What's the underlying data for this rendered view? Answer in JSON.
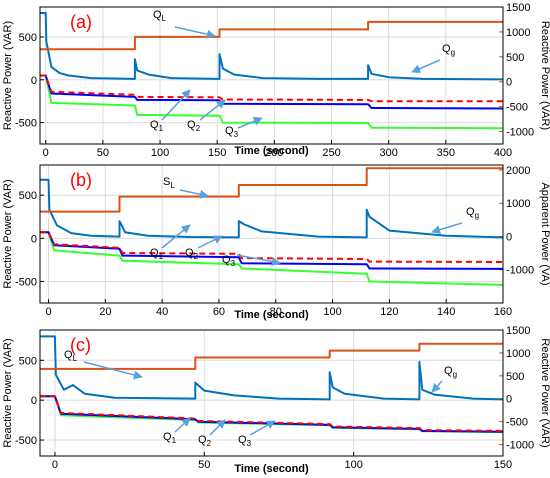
{
  "colors": {
    "load": "#d95319",
    "grid": "#0072bd",
    "q1": "#ff0000",
    "q2": "#0000ff",
    "q3": "#33ff33",
    "label": "#ff0000",
    "arrow": "#5aa0dc"
  },
  "chart_data": [
    {
      "type": "line",
      "panel_label": "(a)",
      "xlabel": "Time (second)",
      "ylabel_left": "Reactive Power (VAR)",
      "ylabel_right": "Reactive Power (VAR)",
      "xlim": [
        -5,
        400
      ],
      "ylim_left": [
        -750,
        850
      ],
      "ylim_right": [
        -1250,
        1500
      ],
      "xticks": [
        "0",
        "50",
        "100",
        "150",
        "200",
        "250",
        "300",
        "350",
        "400"
      ],
      "yticks_left": [
        "0",
        "500",
        "-500"
      ],
      "yticks_right": [
        "-1000",
        "-500",
        "0",
        "500",
        "1000",
        "1500"
      ],
      "grid": true,
      "series": [
        {
          "name": "QL",
          "axis": "right",
          "style": "solid",
          "x": [
            -5,
            78,
            78,
            152,
            152,
            282,
            282,
            400
          ],
          "y": [
            650,
            650,
            900,
            900,
            1050,
            1050,
            1200,
            1200
          ]
        },
        {
          "name": "Qg",
          "axis": "left",
          "style": "solid",
          "x": [
            -5,
            0,
            0.5,
            5,
            12,
            20,
            40,
            78,
            78,
            80,
            90,
            110,
            150,
            152,
            152,
            155,
            165,
            190,
            240,
            282,
            282,
            285,
            300,
            330,
            400
          ],
          "y": [
            780,
            780,
            450,
            150,
            80,
            50,
            20,
            10,
            240,
            110,
            60,
            20,
            10,
            10,
            300,
            130,
            60,
            20,
            10,
            10,
            170,
            70,
            30,
            10,
            5
          ]
        },
        {
          "name": "Q1",
          "axis": "left",
          "style": "dashed",
          "x": [
            -5,
            0,
            5,
            78,
            80,
            152,
            155,
            282,
            285,
            400
          ],
          "y": [
            50,
            50,
            -140,
            -175,
            -200,
            -205,
            -230,
            -235,
            -250,
            -250
          ]
        },
        {
          "name": "Q2",
          "axis": "left",
          "style": "solid",
          "x": [
            -5,
            0,
            5,
            78,
            80,
            152,
            155,
            282,
            285,
            400
          ],
          "y": [
            50,
            50,
            -160,
            -200,
            -235,
            -240,
            -280,
            -285,
            -330,
            -335
          ]
        },
        {
          "name": "Q3",
          "axis": "left",
          "style": "solid",
          "x": [
            -5,
            0,
            5,
            78,
            80,
            152,
            155,
            282,
            285,
            400
          ],
          "y": [
            50,
            50,
            -270,
            -300,
            -410,
            -420,
            -500,
            -505,
            -560,
            -565
          ]
        }
      ],
      "annotations": [
        "QL",
        "Qg",
        "Q1",
        "Q2",
        "Q3"
      ]
    },
    {
      "type": "line",
      "panel_label": "(b)",
      "xlabel": "Time (second)",
      "ylabel_left": "Reactive Power (VAR)",
      "ylabel_right": "Apparent Power (VA)",
      "xlim": [
        -3,
        160
      ],
      "ylim_left": [
        -750,
        850
      ],
      "ylim_right": [
        -2000,
        2150
      ],
      "xticks": [
        "0",
        "20",
        "40",
        "60",
        "80",
        "100",
        "120",
        "140",
        "160"
      ],
      "yticks_left": [
        "500",
        "0",
        "-500"
      ],
      "yticks_right": [
        "-1000",
        "0",
        "1000",
        "2000"
      ],
      "grid": true,
      "series": [
        {
          "name": "SL",
          "axis": "right",
          "style": "solid",
          "x": [
            -3,
            25,
            25,
            67,
            67,
            112,
            112,
            160
          ],
          "y": [
            750,
            750,
            1200,
            1200,
            1550,
            1550,
            2050,
            2050
          ]
        },
        {
          "name": "Qg",
          "axis": "left",
          "style": "solid",
          "x": [
            -3,
            0,
            0.3,
            3,
            8,
            15,
            25,
            25,
            27,
            35,
            50,
            67,
            67,
            69,
            75,
            95,
            112,
            112,
            113,
            120,
            140,
            160
          ],
          "y": [
            680,
            680,
            330,
            150,
            60,
            30,
            20,
            200,
            70,
            30,
            15,
            10,
            200,
            160,
            80,
            20,
            10,
            330,
            250,
            90,
            30,
            10
          ]
        },
        {
          "name": "Q1",
          "axis": "left",
          "style": "dashed",
          "x": [
            -3,
            0,
            2,
            25,
            26,
            67,
            68,
            112,
            113,
            160
          ],
          "y": [
            70,
            70,
            -70,
            -110,
            -170,
            -180,
            -230,
            -240,
            -270,
            -275
          ]
        },
        {
          "name": "Q2",
          "axis": "left",
          "style": "solid",
          "x": [
            -3,
            0,
            2,
            25,
            26,
            67,
            68,
            112,
            113,
            160
          ],
          "y": [
            70,
            70,
            -80,
            -120,
            -200,
            -220,
            -290,
            -300,
            -350,
            -355
          ]
        },
        {
          "name": "Q3",
          "axis": "left",
          "style": "solid",
          "x": [
            -3,
            0,
            2,
            25,
            26,
            67,
            68,
            112,
            113,
            160
          ],
          "y": [
            70,
            70,
            -140,
            -200,
            -260,
            -300,
            -350,
            -410,
            -500,
            -540
          ]
        }
      ],
      "annotations": [
        "SL",
        "Qg",
        "Q1",
        "Q2",
        "Q3"
      ]
    },
    {
      "type": "line",
      "panel_label": "(c)",
      "xlabel": "Time (second)",
      "ylabel_left": "Reactive Power (VAR)",
      "ylabel_right": "Reactive Power (VAR)",
      "xlim": [
        -5,
        150
      ],
      "ylim_left": [
        -700,
        880
      ],
      "ylim_right": [
        -1250,
        1500
      ],
      "xticks": [
        "0",
        "50",
        "100",
        "150"
      ],
      "yticks_left": [
        "500",
        "0",
        "-500"
      ],
      "yticks_right": [
        "-1000",
        "-500",
        "0",
        "500",
        "1000",
        "1500"
      ],
      "grid": true,
      "series": [
        {
          "name": "QL",
          "axis": "right",
          "style": "solid",
          "x": [
            -5,
            47,
            47,
            92,
            92,
            122,
            122,
            150
          ],
          "y": [
            650,
            650,
            900,
            900,
            1050,
            1050,
            1200,
            1200
          ]
        },
        {
          "name": "Qg",
          "axis": "left",
          "style": "solid",
          "x": [
            -5,
            0,
            0.3,
            3,
            6,
            10,
            20,
            47,
            47,
            50,
            60,
            75,
            92,
            92,
            93,
            97,
            110,
            122,
            122,
            123,
            127,
            140,
            150
          ],
          "y": [
            800,
            800,
            320,
            130,
            190,
            80,
            30,
            20,
            220,
            120,
            60,
            20,
            10,
            350,
            160,
            80,
            20,
            10,
            480,
            130,
            70,
            20,
            10
          ]
        },
        {
          "name": "Q1",
          "axis": "left",
          "style": "dashed",
          "x": [
            -5,
            0,
            2,
            47,
            48,
            92,
            93,
            122,
            123,
            150
          ],
          "y": [
            50,
            50,
            -160,
            -230,
            -260,
            -300,
            -330,
            -350,
            -375,
            -385
          ]
        },
        {
          "name": "Q2",
          "axis": "left",
          "style": "solid",
          "x": [
            -5,
            0,
            2,
            47,
            48,
            92,
            93,
            122,
            123,
            150
          ],
          "y": [
            50,
            50,
            -170,
            -240,
            -270,
            -310,
            -340,
            -360,
            -385,
            -395
          ]
        },
        {
          "name": "Q3",
          "axis": "left",
          "style": "solid",
          "x": [
            -5,
            0,
            2,
            47,
            48,
            92,
            93,
            122,
            123,
            150
          ],
          "y": [
            50,
            50,
            -190,
            -250,
            -280,
            -315,
            -345,
            -365,
            -390,
            -400
          ]
        }
      ],
      "annotations": [
        "QL",
        "Qg",
        "Q1",
        "Q2",
        "Q3"
      ]
    }
  ]
}
